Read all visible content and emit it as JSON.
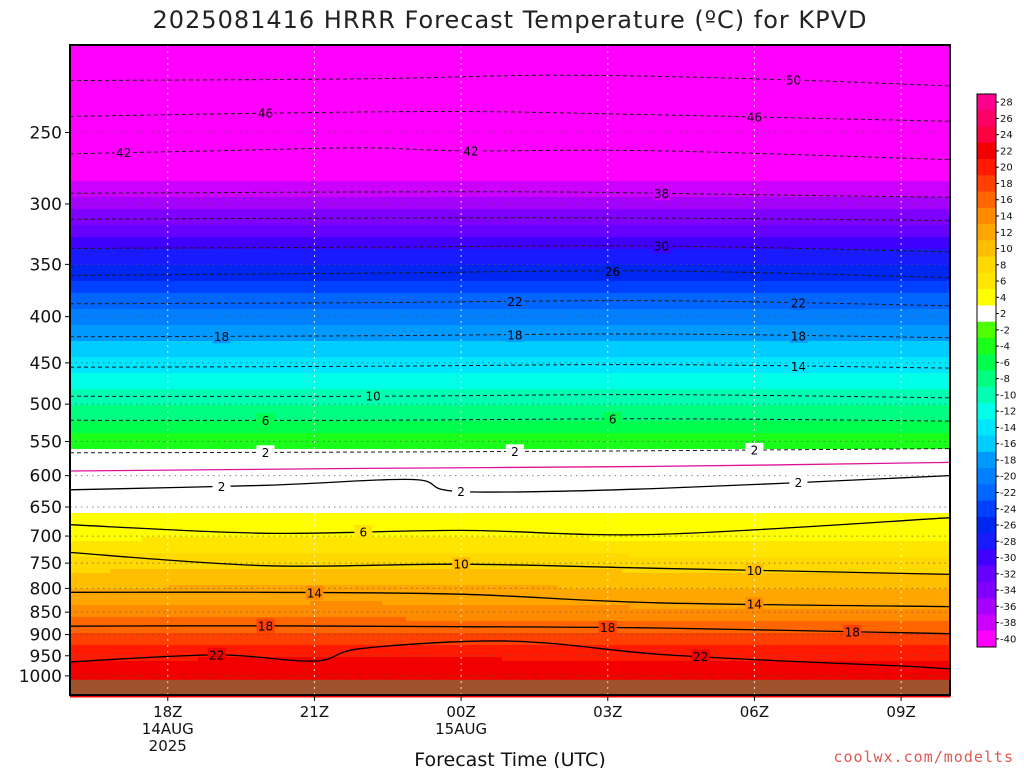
{
  "chart_data": {
    "type": "heatmap",
    "title": "2025081416 HRRR Forecast Temperature (ºC) for KPVD",
    "xlabel": "Forecast Time (UTC)",
    "ylabel": "",
    "credit": "coolwx.com/modelts",
    "units": "ºC",
    "y_scale": "log-pressure (inverted)",
    "ylim_hpa": [
      1050,
      200
    ],
    "xlim_hours": [
      16,
      34
    ],
    "grid": true,
    "y_ticks": [
      250,
      300,
      350,
      400,
      450,
      500,
      550,
      600,
      650,
      700,
      750,
      800,
      850,
      900,
      950,
      1000
    ],
    "x_ticks": [
      {
        "hour": 18,
        "lines": [
          "18Z",
          "14AUG",
          "2025"
        ]
      },
      {
        "hour": 21,
        "lines": [
          "21Z"
        ]
      },
      {
        "hour": 24,
        "lines": [
          "00Z",
          "15AUG"
        ]
      },
      {
        "hour": 27,
        "lines": [
          "03Z"
        ]
      },
      {
        "hour": 30,
        "lines": [
          "06Z"
        ]
      },
      {
        "hour": 33,
        "lines": [
          "09Z"
        ]
      }
    ],
    "colorbar": {
      "ticks": [
        "28",
        "26",
        "24",
        "22",
        "20",
        "18",
        "16",
        "14",
        "12",
        "10",
        "8",
        "6",
        "4",
        "2",
        "-2",
        "-4",
        "-6",
        "-8",
        "-10",
        "-12",
        "-14",
        "-16",
        "-18",
        "-20",
        "-22",
        "-24",
        "-26",
        "-28",
        "-30",
        "-32",
        "-34",
        "-36",
        "-38",
        "-40"
      ],
      "colors": [
        "#ff008c",
        "#ff0066",
        "#ff0040",
        "#f20000",
        "#ff1a00",
        "#ff4000",
        "#ff6600",
        "#ff8c00",
        "#ffa600",
        "#ffbf00",
        "#ffd900",
        "#ffe600",
        "#ffff00",
        "#ffffff",
        "#4dff00",
        "#1aff1a",
        "#00ff4d",
        "#00ff80",
        "#00ffb3",
        "#00ffe6",
        "#00e6ff",
        "#00ccff",
        "#0099ff",
        "#0080ff",
        "#0066ff",
        "#0040ff",
        "#0026f2",
        "#1a1aff",
        "#4000ff",
        "#6600ff",
        "#8000ff",
        "#a600ff",
        "#cc00ff",
        "#ff00ff"
      ]
    },
    "profiles": [
      {
        "pressure_hpa": 1000,
        "temps_c": [
          23.5,
          23.5,
          23.0,
          23.0
        ]
      },
      {
        "pressure_hpa": 950,
        "temps_c": [
          21.5,
          22.0,
          21.5,
          21.5
        ]
      },
      {
        "pressure_hpa": 900,
        "temps_c": [
          18.5,
          18.5,
          18.0,
          18.0
        ]
      },
      {
        "pressure_hpa": 850,
        "temps_c": [
          15.0,
          15.0,
          14.5,
          14.5
        ]
      },
      {
        "pressure_hpa": 800,
        "temps_c": [
          12.0,
          12.5,
          12.0,
          12.0
        ]
      },
      {
        "pressure_hpa": 750,
        "temps_c": [
          9.0,
          9.5,
          9.0,
          9.0
        ]
      },
      {
        "pressure_hpa": 700,
        "temps_c": [
          5.5,
          6.0,
          5.5,
          5.5
        ]
      },
      {
        "pressure_hpa": 650,
        "temps_c": [
          3.5,
          3.5,
          3.5,
          3.5
        ]
      },
      {
        "pressure_hpa": 600,
        "temps_c": [
          1.0,
          1.0,
          1.0,
          1.0
        ]
      },
      {
        "pressure_hpa": 550,
        "temps_c": [
          -3.0,
          -3.0,
          -3.0,
          -3.0
        ]
      },
      {
        "pressure_hpa": 500,
        "temps_c": [
          -8.0,
          -8.0,
          -8.0,
          -8.0
        ]
      },
      {
        "pressure_hpa": 450,
        "temps_c": [
          -13.0,
          -13.0,
          -13.0,
          -13.0
        ]
      },
      {
        "pressure_hpa": 400,
        "temps_c": [
          -19.0,
          -19.0,
          -19.0,
          -19.0
        ]
      },
      {
        "pressure_hpa": 350,
        "temps_c": [
          -26.0,
          -26.0,
          -26.0,
          -26.0
        ]
      },
      {
        "pressure_hpa": 300,
        "temps_c": [
          -35.0,
          -35.0,
          -35.0,
          -35.0
        ]
      },
      {
        "pressure_hpa": 250,
        "temps_c": [
          -45.0,
          -45.0,
          -45.0,
          -45.0
        ]
      },
      {
        "pressure_hpa": 200,
        "temps_c": [
          -52.0,
          -52.0,
          -52.0,
          -52.0
        ]
      }
    ],
    "profile_hours": [
      16,
      22,
      28,
      34
    ],
    "contours": [
      {
        "value": 50,
        "style": "dashed",
        "label": "50",
        "label_hour": 30.8,
        "hpa": [
          [
            16,
            219
          ],
          [
            22,
            218
          ],
          [
            26,
            216
          ],
          [
            30,
            218
          ],
          [
            34,
            222
          ]
        ]
      },
      {
        "value": 46,
        "style": "dashed",
        "label": "46",
        "label_hour": 20.0,
        "label2_hour": 30.0,
        "hpa": [
          [
            16,
            240
          ],
          [
            20,
            238
          ],
          [
            24,
            237
          ],
          [
            28,
            239
          ],
          [
            34,
            243
          ]
        ]
      },
      {
        "value": 42,
        "style": "dashed",
        "label": "42",
        "label_hour": 17.1,
        "label2_hour": 24.2,
        "hpa": [
          [
            16,
            264
          ],
          [
            19,
            262
          ],
          [
            22,
            260
          ],
          [
            24,
            262
          ],
          [
            28,
            262
          ],
          [
            34,
            268
          ]
        ]
      },
      {
        "value": 38,
        "style": "dashed",
        "label": "38",
        "label_hour": 28.1,
        "hpa": [
          [
            16,
            292
          ],
          [
            22,
            291
          ],
          [
            26,
            291
          ],
          [
            30,
            293
          ],
          [
            34,
            295
          ]
        ]
      },
      {
        "value": 34,
        "style": "dashed",
        "label": "",
        "hpa": [
          [
            16,
            312
          ],
          [
            22,
            311
          ],
          [
            28,
            311
          ],
          [
            34,
            313
          ]
        ]
      },
      {
        "value": 30,
        "style": "dashed",
        "label": "30",
        "label_hour": 28.1,
        "hpa": [
          [
            16,
            336
          ],
          [
            22,
            335
          ],
          [
            28,
            334
          ],
          [
            34,
            339
          ]
        ]
      },
      {
        "value": 26,
        "style": "dashed",
        "label": "26",
        "label_hour": 27.1,
        "hpa": [
          [
            16,
            360
          ],
          [
            22,
            358
          ],
          [
            28,
            356
          ],
          [
            34,
            362
          ]
        ]
      },
      {
        "value": 22,
        "style": "dashed",
        "label": "22",
        "label_hour": 25.1,
        "label2_hour": 30.9,
        "hpa": [
          [
            16,
            387
          ],
          [
            22,
            386
          ],
          [
            28,
            384
          ],
          [
            34,
            389
          ]
        ]
      },
      {
        "value": 18,
        "style": "dashed",
        "label": "18",
        "label_hour": 19.1,
        "label2_hour": 25.1,
        "label3_hour": 30.9,
        "hpa": [
          [
            16,
            421
          ],
          [
            22,
            420
          ],
          [
            28,
            418
          ],
          [
            34,
            422
          ]
        ]
      },
      {
        "value": 14,
        "style": "dashed",
        "label": "14",
        "label_hour": 30.9,
        "hpa": [
          [
            16,
            455
          ],
          [
            22,
            454
          ],
          [
            28,
            452
          ],
          [
            34,
            456
          ]
        ]
      },
      {
        "value": 10,
        "style": "dashed",
        "label": "10",
        "label_hour": 22.2,
        "hpa": [
          [
            16,
            490
          ],
          [
            22,
            490
          ],
          [
            28,
            488
          ],
          [
            34,
            492
          ]
        ]
      },
      {
        "value": 6,
        "style": "dashed",
        "label": "6",
        "label_hour": 20.0,
        "label2_hour": 27.1,
        "hpa": [
          [
            16,
            521
          ],
          [
            22,
            521
          ],
          [
            28,
            519
          ],
          [
            34,
            522
          ]
        ]
      },
      {
        "value": 2,
        "style": "dashed",
        "label": "2",
        "label_hour": 20.0,
        "label2_hour": 25.1,
        "label3_hour": 30.0,
        "hpa": [
          [
            16,
            566
          ],
          [
            22,
            565
          ],
          [
            28,
            563
          ],
          [
            34,
            560
          ]
        ]
      },
      {
        "value": 0,
        "style": "magenta",
        "label": "",
        "hpa": [
          [
            16,
            593
          ],
          [
            22,
            589
          ],
          [
            28,
            586
          ],
          [
            34,
            580
          ]
        ]
      },
      {
        "value": 2,
        "style": "solid",
        "label": "2",
        "label_hour": 19.1,
        "label2_hour": 24.0,
        "label3_hour": 30.9,
        "hpa": [
          [
            16,
            622
          ],
          [
            20,
            615
          ],
          [
            23,
            606
          ],
          [
            24,
            625
          ],
          [
            28,
            620
          ],
          [
            34,
            600
          ]
        ]
      },
      {
        "value": 6,
        "style": "solid",
        "label": "6",
        "label_hour": 22.0,
        "hpa": [
          [
            16,
            680
          ],
          [
            20,
            695
          ],
          [
            24,
            690
          ],
          [
            28,
            697
          ],
          [
            34,
            668
          ]
        ]
      },
      {
        "value": 10,
        "style": "solid",
        "label": "10",
        "label_hour": 24.0,
        "label2_hour": 30.0,
        "hpa": [
          [
            16,
            730
          ],
          [
            20,
            755
          ],
          [
            24,
            752
          ],
          [
            28,
            760
          ],
          [
            34,
            772
          ]
        ]
      },
      {
        "value": 14,
        "style": "solid",
        "label": "14",
        "label_hour": 21.0,
        "label2_hour": 30.0,
        "hpa": [
          [
            16,
            808
          ],
          [
            20,
            808
          ],
          [
            24,
            812
          ],
          [
            28,
            830
          ],
          [
            34,
            838
          ]
        ]
      },
      {
        "value": 18,
        "style": "solid",
        "label": "18",
        "label_hour": 20.0,
        "label2_hour": 27.0,
        "label3_hour": 32.0,
        "hpa": [
          [
            16,
            881
          ],
          [
            20,
            880
          ],
          [
            24,
            882
          ],
          [
            28,
            885
          ],
          [
            34,
            898
          ]
        ]
      },
      {
        "value": 22,
        "style": "solid",
        "label": "22",
        "label_hour": 19.0,
        "label2_hour": 28.9,
        "hpa": [
          [
            16,
            965
          ],
          [
            19,
            948
          ],
          [
            21,
            963
          ],
          [
            22,
            932
          ],
          [
            25,
            915
          ],
          [
            28,
            946
          ],
          [
            31,
            965
          ],
          [
            33,
            975
          ],
          [
            34,
            982
          ]
        ]
      }
    ]
  }
}
